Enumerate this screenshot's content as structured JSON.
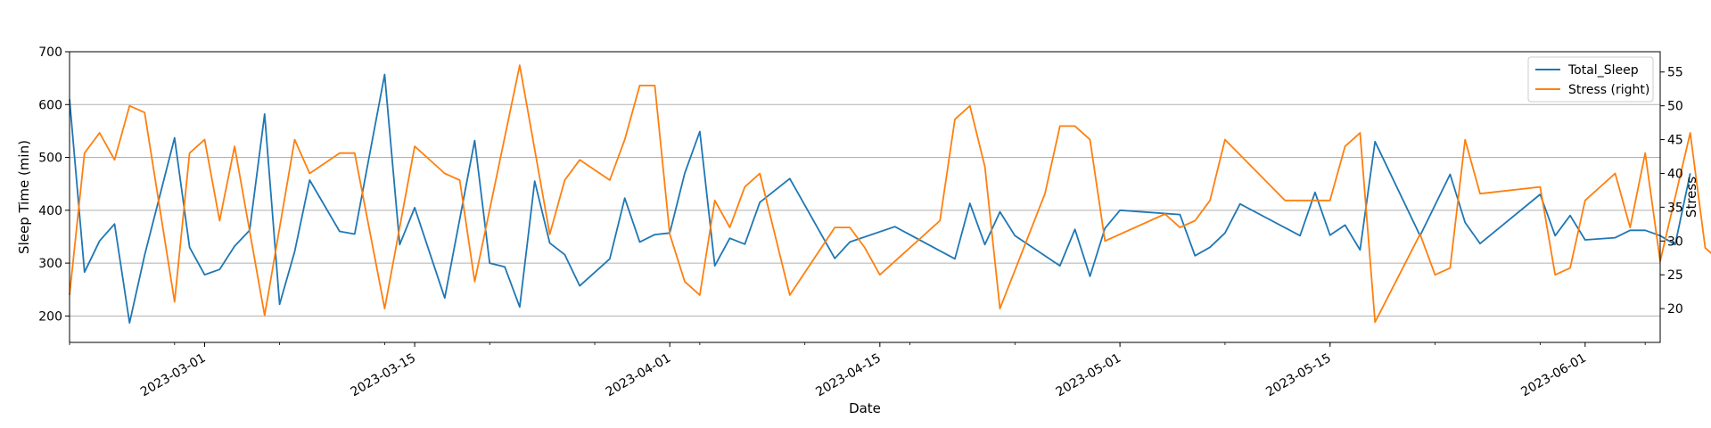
{
  "chart_data": {
    "type": "line",
    "xlabel": "Date",
    "ylabel": "Sleep Time (min)",
    "ylabel_right": "Stress",
    "xlim": [
      "2023-02-20",
      "2023-06-06"
    ],
    "ylim": [
      150,
      700
    ],
    "ylim_right": [
      15,
      58
    ],
    "grid": "horizontal",
    "legend": "top-right",
    "x_ticks": [
      "2023-03-01",
      "2023-03-15",
      "2023-04-01",
      "2023-04-15",
      "2023-05-01",
      "2023-05-15",
      "2023-06-01"
    ],
    "y_ticks": [
      200,
      300,
      400,
      500,
      600,
      700
    ],
    "y_ticks_right": [
      20,
      25,
      30,
      35,
      40,
      45,
      50,
      55
    ],
    "series": [
      {
        "name": "Total_Sleep",
        "axis": "left",
        "color": "#1f77b4",
        "points": [
          [
            "2023-02-20",
            610
          ],
          [
            "2023-02-21",
            283
          ],
          [
            "2023-02-22",
            342
          ],
          [
            "2023-02-23",
            374
          ],
          [
            "2023-02-24",
            187
          ],
          [
            "2023-02-25",
            315
          ],
          [
            "2023-02-27",
            537
          ],
          [
            "2023-02-28",
            330
          ],
          [
            "2023-03-01",
            278
          ],
          [
            "2023-03-02",
            288
          ],
          [
            "2023-03-03",
            332
          ],
          [
            "2023-03-04",
            362
          ],
          [
            "2023-03-05",
            582
          ],
          [
            "2023-03-06",
            222
          ],
          [
            "2023-03-07",
            322
          ],
          [
            "2023-03-08",
            457
          ],
          [
            "2023-03-10",
            360
          ],
          [
            "2023-03-11",
            355
          ],
          [
            "2023-03-13",
            657
          ],
          [
            "2023-03-14",
            335
          ],
          [
            "2023-03-15",
            405
          ],
          [
            "2023-03-17",
            234
          ],
          [
            "2023-03-19",
            532
          ],
          [
            "2023-03-20",
            300
          ],
          [
            "2023-03-21",
            293
          ],
          [
            "2023-03-22",
            217
          ],
          [
            "2023-03-23",
            455
          ],
          [
            "2023-03-24",
            338
          ],
          [
            "2023-03-25",
            316
          ],
          [
            "2023-03-26",
            257
          ],
          [
            "2023-03-28",
            308
          ],
          [
            "2023-03-29",
            423
          ],
          [
            "2023-03-30",
            340
          ],
          [
            "2023-03-31",
            354
          ],
          [
            "2023-04-01",
            357
          ],
          [
            "2023-04-02",
            470
          ],
          [
            "2023-04-03",
            549
          ],
          [
            "2023-04-04",
            295
          ],
          [
            "2023-04-05",
            347
          ],
          [
            "2023-04-06",
            336
          ],
          [
            "2023-04-07",
            415
          ],
          [
            "2023-04-09",
            460
          ],
          [
            "2023-04-12",
            309
          ],
          [
            "2023-04-13",
            340
          ],
          [
            "2023-04-16",
            369
          ],
          [
            "2023-04-20",
            308
          ],
          [
            "2023-04-21",
            413
          ],
          [
            "2023-04-22",
            335
          ],
          [
            "2023-04-23",
            397
          ],
          [
            "2023-04-24",
            352
          ],
          [
            "2023-04-27",
            295
          ],
          [
            "2023-04-28",
            364
          ],
          [
            "2023-04-29",
            275
          ],
          [
            "2023-04-30",
            366
          ],
          [
            "2023-05-01",
            400
          ],
          [
            "2023-05-05",
            392
          ],
          [
            "2023-05-06",
            314
          ],
          [
            "2023-05-07",
            330
          ],
          [
            "2023-05-08",
            357
          ],
          [
            "2023-05-09",
            412
          ],
          [
            "2023-05-13",
            352
          ],
          [
            "2023-05-14",
            434
          ],
          [
            "2023-05-15",
            353
          ],
          [
            "2023-05-16",
            372
          ],
          [
            "2023-05-17",
            325
          ],
          [
            "2023-05-18",
            530
          ],
          [
            "2023-05-21",
            352
          ],
          [
            "2023-05-23",
            468
          ],
          [
            "2023-05-24",
            377
          ],
          [
            "2023-05-25",
            337
          ],
          [
            "2023-05-29",
            430
          ],
          [
            "2023-05-30",
            352
          ],
          [
            "2023-05-31",
            390
          ],
          [
            "2023-06-01",
            344
          ],
          [
            "2023-06-03",
            348
          ],
          [
            "2023-06-04",
            362
          ],
          [
            "2023-06-05",
            362
          ],
          [
            "2023-06-06",
            352
          ],
          [
            "2023-06-07",
            335
          ],
          [
            "2023-06-08",
            470
          ]
        ]
      },
      {
        "name": "Stress (right)",
        "axis": "right",
        "color": "#ff7f0e",
        "points": [
          [
            "2023-02-20",
            22
          ],
          [
            "2023-02-21",
            43
          ],
          [
            "2023-02-22",
            46
          ],
          [
            "2023-02-23",
            42
          ],
          [
            "2023-02-24",
            50
          ],
          [
            "2023-02-25",
            49
          ],
          [
            "2023-02-27",
            21
          ],
          [
            "2023-02-28",
            43
          ],
          [
            "2023-03-01",
            45
          ],
          [
            "2023-03-02",
            33
          ],
          [
            "2023-03-03",
            44
          ],
          [
            "2023-03-05",
            19
          ],
          [
            "2023-03-07",
            45
          ],
          [
            "2023-03-08",
            40
          ],
          [
            "2023-03-10",
            43
          ],
          [
            "2023-03-11",
            43
          ],
          [
            "2023-03-13",
            20
          ],
          [
            "2023-03-15",
            44
          ],
          [
            "2023-03-17",
            40
          ],
          [
            "2023-03-18",
            39
          ],
          [
            "2023-03-19",
            24
          ],
          [
            "2023-03-22",
            56
          ],
          [
            "2023-03-24",
            31
          ],
          [
            "2023-03-25",
            39
          ],
          [
            "2023-03-26",
            42
          ],
          [
            "2023-03-28",
            39
          ],
          [
            "2023-03-29",
            45
          ],
          [
            "2023-03-30",
            53
          ],
          [
            "2023-03-31",
            53
          ],
          [
            "2023-04-01",
            31
          ],
          [
            "2023-04-02",
            24
          ],
          [
            "2023-04-03",
            22
          ],
          [
            "2023-04-04",
            36
          ],
          [
            "2023-04-05",
            32
          ],
          [
            "2023-04-06",
            38
          ],
          [
            "2023-04-07",
            40
          ],
          [
            "2023-04-09",
            22
          ],
          [
            "2023-04-12",
            32
          ],
          [
            "2023-04-13",
            32
          ],
          [
            "2023-04-14",
            29
          ],
          [
            "2023-04-15",
            25
          ],
          [
            "2023-04-19",
            33
          ],
          [
            "2023-04-20",
            48
          ],
          [
            "2023-04-21",
            50
          ],
          [
            "2023-04-22",
            41
          ],
          [
            "2023-04-23",
            20
          ],
          [
            "2023-04-26",
            37
          ],
          [
            "2023-04-27",
            47
          ],
          [
            "2023-04-28",
            47
          ],
          [
            "2023-04-29",
            45
          ],
          [
            "2023-04-30",
            30
          ],
          [
            "2023-05-04",
            34
          ],
          [
            "2023-05-05",
            32
          ],
          [
            "2023-05-06",
            33
          ],
          [
            "2023-05-07",
            36
          ],
          [
            "2023-05-08",
            45
          ],
          [
            "2023-05-12",
            36
          ],
          [
            "2023-05-14",
            36
          ],
          [
            "2023-05-15",
            36
          ],
          [
            "2023-05-16",
            44
          ],
          [
            "2023-05-17",
            46
          ],
          [
            "2023-05-18",
            18
          ],
          [
            "2023-05-21",
            31
          ],
          [
            "2023-05-22",
            25
          ],
          [
            "2023-05-23",
            26
          ],
          [
            "2023-05-24",
            45
          ],
          [
            "2023-05-25",
            37
          ],
          [
            "2023-05-29",
            38
          ],
          [
            "2023-05-30",
            25
          ],
          [
            "2023-05-31",
            26
          ],
          [
            "2023-06-01",
            36
          ],
          [
            "2023-06-03",
            40
          ],
          [
            "2023-06-04",
            32
          ],
          [
            "2023-06-05",
            43
          ],
          [
            "2023-06-06",
            27
          ],
          [
            "2023-06-08",
            46
          ],
          [
            "2023-06-09",
            29
          ],
          [
            "2023-06-10",
            27
          ]
        ]
      }
    ]
  }
}
